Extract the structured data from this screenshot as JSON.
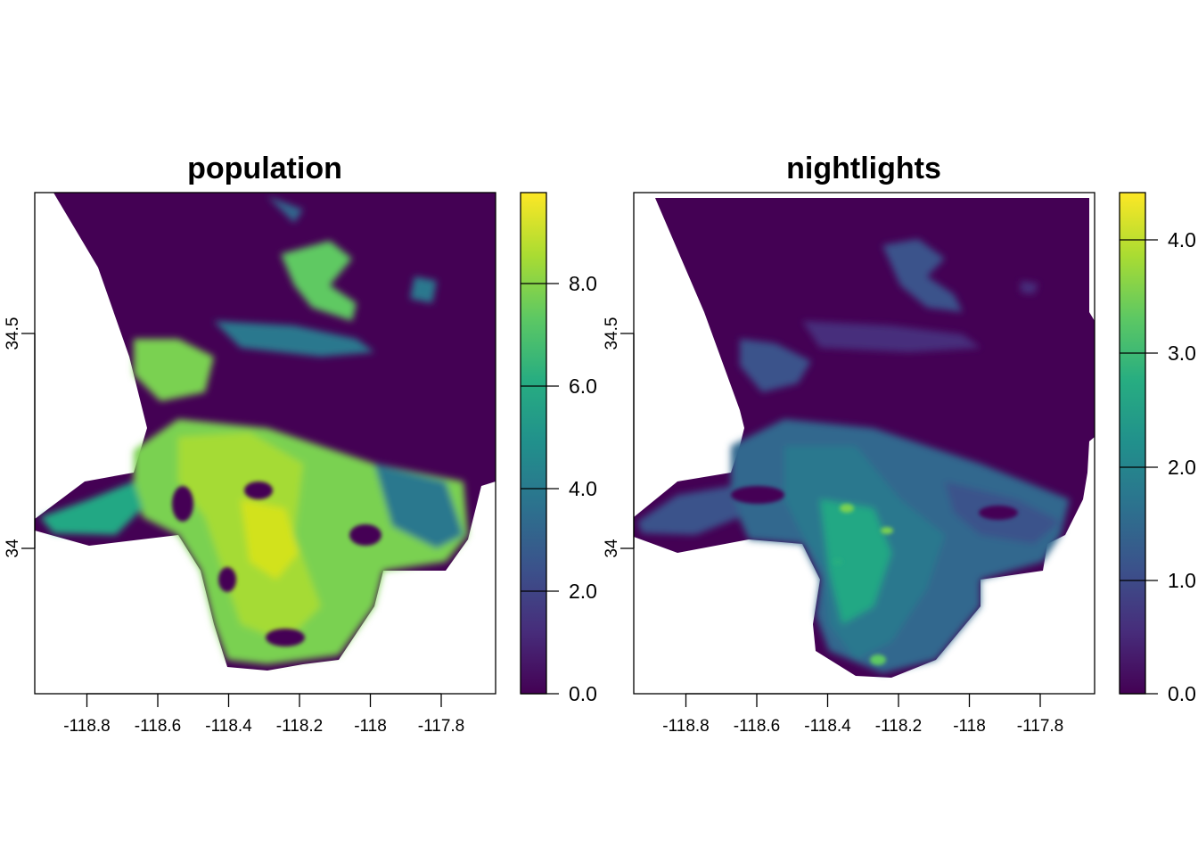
{
  "chart_data": [
    {
      "type": "heatmap",
      "title": "population",
      "xlabel": "",
      "ylabel": "",
      "x_ticks": [
        "-118.8",
        "-118.6",
        "-118.4",
        "-118.2",
        "-118",
        "-117.8"
      ],
      "x_tick_values": [
        -118.8,
        -118.6,
        -118.4,
        -118.2,
        -118.0,
        -117.8
      ],
      "y_ticks": [
        "34",
        "34.5"
      ],
      "y_tick_values": [
        34.0,
        34.5
      ],
      "xlim": [
        -118.95,
        -117.65
      ],
      "ylim": [
        33.67,
        34.83
      ],
      "colorbar": {
        "ticks": [
          "0.0",
          "2.0",
          "4.0",
          "6.0",
          "8.0"
        ],
        "tick_values": [
          0,
          2,
          4,
          6,
          8
        ],
        "range": [
          0,
          9.7
        ],
        "colormap": "viridis"
      },
      "legend": "right",
      "grid": false
    },
    {
      "type": "heatmap",
      "title": "nightlights",
      "xlabel": "",
      "ylabel": "",
      "x_ticks": [
        "-118.8",
        "-118.6",
        "-118.4",
        "-118.2",
        "-118",
        "-117.8"
      ],
      "x_tick_values": [
        -118.8,
        -118.6,
        -118.4,
        -118.2,
        -118.0,
        -117.8
      ],
      "y_ticks": [
        "34",
        "34.5"
      ],
      "y_tick_values": [
        34.0,
        34.5
      ],
      "xlim": [
        -118.95,
        -117.65
      ],
      "ylim": [
        33.67,
        34.83
      ],
      "colorbar": {
        "ticks": [
          "0.0",
          "1.0",
          "2.0",
          "3.0",
          "4.0"
        ],
        "tick_values": [
          0,
          1,
          2,
          3,
          4
        ],
        "range": [
          0,
          4.4
        ],
        "colormap": "viridis"
      },
      "legend": "right",
      "grid": false
    }
  ],
  "colors": {
    "viridis_0": "#440154",
    "viridis_25": "#3b528b",
    "viridis_50": "#21908c",
    "viridis_75": "#5dc863",
    "viridis_100": "#fde725"
  }
}
